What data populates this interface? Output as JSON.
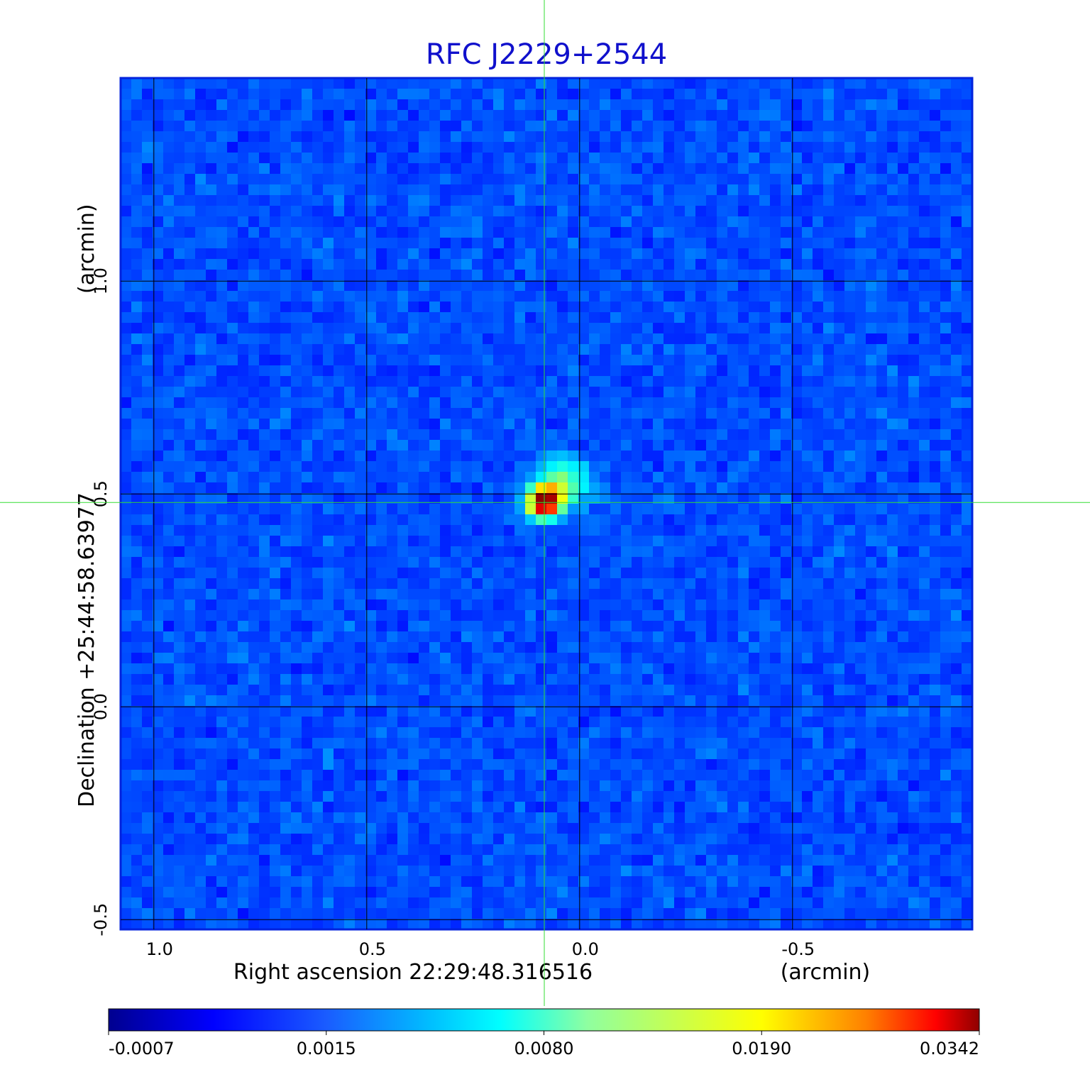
{
  "chart_data": {
    "type": "image",
    "title": "RFC J2229+2544",
    "xlabel": "Right ascension  22:29:48.316516",
    "xunit": "(arcmin)",
    "ylabel": "Declination  +25:44:58.63977",
    "yunit": "(arcmin)",
    "xlim": [
      1.078,
      -0.922
    ],
    "ylim": [
      -0.523,
      1.477
    ],
    "xticks": [
      {
        "value": 1,
        "label": "1.0"
      },
      0.5,
      {
        "value": 0,
        "label": "0.0"
      },
      -0.5
    ],
    "yticks": [
      -0.5,
      {
        "value": 0,
        "label": "0.0"
      },
      0.5,
      {
        "value": 1,
        "label": "1.0"
      }
    ],
    "grid": true,
    "marker": {
      "x": 0.083,
      "y": 0.48,
      "color": "#33dd33"
    },
    "colorbar": {
      "ticks": [
        -0.0007,
        0.0015,
        {
          "value": 0.008,
          "label": "0.0080"
        },
        {
          "value": 0.019,
          "label": "0.0190"
        },
        0.0342
      ]
    }
  }
}
